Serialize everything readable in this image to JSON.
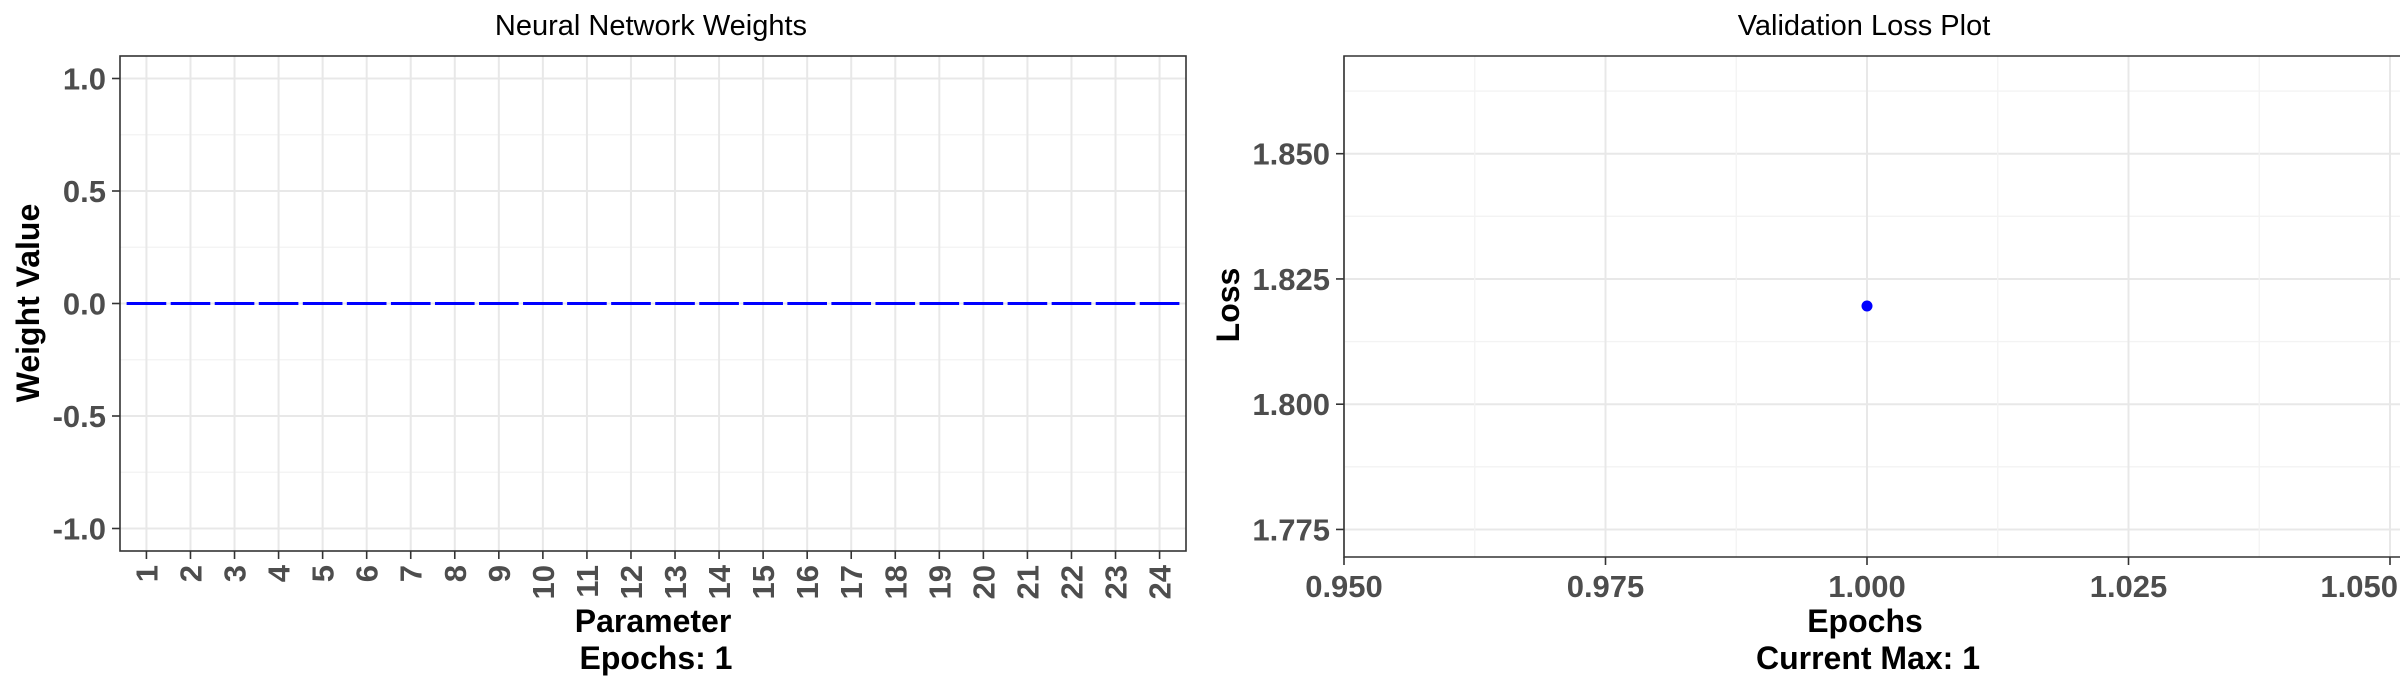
{
  "chart_data": [
    {
      "type": "bar",
      "title": "Neural Network Weights",
      "xlabel": "Parameter",
      "xlabel2": "Epochs: 1",
      "ylabel": "Weight Value",
      "categories": [
        "1",
        "2",
        "3",
        "4",
        "5",
        "6",
        "7",
        "8",
        "9",
        "10",
        "11",
        "12",
        "13",
        "14",
        "15",
        "16",
        "17",
        "18",
        "19",
        "20",
        "21",
        "22",
        "23",
        "24"
      ],
      "values": [
        0.003,
        0.003,
        0.002,
        0.002,
        0.002,
        0.002,
        0.003,
        0.003,
        -0.002,
        -0.002,
        -0.002,
        -0.003,
        -0.002,
        -0.003,
        -0.002,
        -0.003,
        -0.003,
        -0.002,
        -0.003,
        -0.003,
        -0.002,
        -0.003,
        -0.002,
        -0.003
      ],
      "ylim": [
        -1.1,
        1.1
      ],
      "yticks": [
        -1.0,
        -0.5,
        0.0,
        0.5,
        1.0
      ],
      "ytick_labels": [
        "-1.0",
        "-0.5",
        "0.0",
        "0.5",
        "1.0"
      ],
      "color": "#0000ff",
      "grid": true,
      "legend": "none"
    },
    {
      "type": "scatter",
      "title": "Validation Loss Plot",
      "xlabel": "Epochs",
      "xlabel2": "Current Max: 1",
      "ylabel": "Loss",
      "x": [
        1.0
      ],
      "y": [
        1.8196
      ],
      "xlim": [
        0.95,
        1.05
      ],
      "ylim": [
        1.7695,
        1.8695
      ],
      "xticks": [
        0.95,
        0.975,
        1.0,
        1.025,
        1.05
      ],
      "xtick_labels": [
        "0.950",
        "0.975",
        "1.000",
        "1.025",
        "1.050"
      ],
      "yticks": [
        1.775,
        1.8,
        1.825,
        1.85
      ],
      "ytick_labels": [
        "1.775",
        "1.800",
        "1.825",
        "1.850"
      ],
      "color": "#0000ff",
      "grid": true,
      "legend": "none"
    }
  ]
}
